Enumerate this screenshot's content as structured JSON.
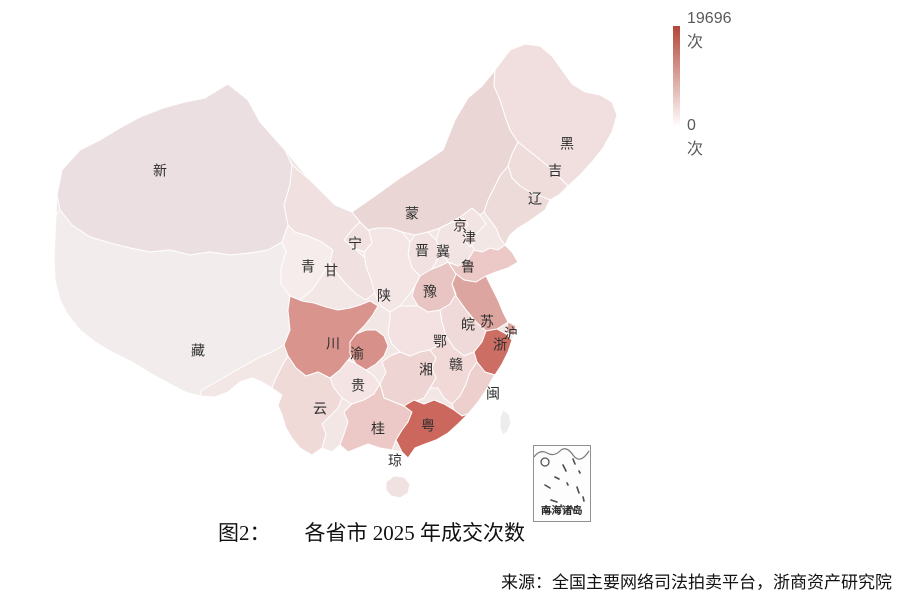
{
  "page": {
    "background": "#ffffff"
  },
  "legend": {
    "max_label": "19696次",
    "min_label": "0次",
    "top_color": "#b34638",
    "bottom_color": "#ffffff",
    "label_color": "#5a5a5a"
  },
  "caption": {
    "prefix": "图2：",
    "text": "各省市 2025 年成交次数"
  },
  "source": {
    "text": "来源：全国主要网络司法拍卖平台，浙商资产研究院"
  },
  "inset": {
    "label": "南海诸岛"
  },
  "map": {
    "base_color": "#f3e7e6",
    "border_color": "#ffffff",
    "taiwan_color": "#ededed"
  },
  "chart_data": {
    "type": "heatmap",
    "subtype": "china-province-choropleth",
    "title": "图2： 各省市 2025 年成交次数",
    "unit": "次",
    "value_range": [
      0,
      19696
    ],
    "legend_position": "top-right",
    "values_estimated_from_color": true,
    "provinces": [
      {
        "id": "xinjiang",
        "abbr": "新",
        "color": "#ebdfe1",
        "value_est": 2500
      },
      {
        "id": "xizang",
        "abbr": "藏",
        "color": "#f2edec",
        "value_est": 400
      },
      {
        "id": "qinghai",
        "abbr": "青",
        "color": "#f5eceb",
        "value_est": 600
      },
      {
        "id": "gansu",
        "abbr": "甘",
        "color": "#f0e0df",
        "value_est": 1500
      },
      {
        "id": "neimenggu",
        "abbr": "蒙",
        "color": "#ead6d5",
        "value_est": 3000
      },
      {
        "id": "heilongjiang",
        "abbr": "黑",
        "color": "#f0dfde",
        "value_est": 2000
      },
      {
        "id": "jilin",
        "abbr": "吉",
        "color": "#efdddc",
        "value_est": 2200
      },
      {
        "id": "liaoning",
        "abbr": "辽",
        "color": "#eddbda",
        "value_est": 2500
      },
      {
        "id": "hebei",
        "abbr": "冀",
        "color": "#f2e4e3",
        "value_est": 1800
      },
      {
        "id": "shanxi",
        "abbr": "晋",
        "color": "#f1e2e1",
        "value_est": 1900
      },
      {
        "id": "shaanxi",
        "abbr": "陕",
        "color": "#f3e6e5",
        "value_est": 1700
      },
      {
        "id": "ningxia",
        "abbr": "宁",
        "color": "#f1e2e1",
        "value_est": 1400
      },
      {
        "id": "beijing",
        "abbr": "京",
        "color": "#f0dcdb",
        "value_est": 2300
      },
      {
        "id": "tianjin",
        "abbr": "津",
        "color": "#eedad9",
        "value_est": 2400
      },
      {
        "id": "shandong",
        "abbr": "鲁",
        "color": "#ecc9c7",
        "value_est": 5200
      },
      {
        "id": "henan",
        "abbr": "豫",
        "color": "#e8c5c3",
        "value_est": 5000
      },
      {
        "id": "hubei",
        "abbr": "鄂",
        "color": "#f3e2e1",
        "value_est": 2600
      },
      {
        "id": "jiangsu",
        "abbr": "苏",
        "color": "#dda59f",
        "value_est": 8500
      },
      {
        "id": "anhui",
        "abbr": "皖",
        "color": "#f0dad9",
        "value_est": 3200
      },
      {
        "id": "shanghai",
        "abbr": "沪",
        "color": "#dca49e",
        "value_est": 8600
      },
      {
        "id": "sichuan",
        "abbr": "川",
        "color": "#d9948d",
        "value_est": 12000
      },
      {
        "id": "chongqing",
        "abbr": "渝",
        "color": "#d8918a",
        "value_est": 12500
      },
      {
        "id": "guizhou",
        "abbr": "贵",
        "color": "#f4e5e4",
        "value_est": 1600
      },
      {
        "id": "yunnan",
        "abbr": "云",
        "color": "#efdad8",
        "value_est": 3400
      },
      {
        "id": "hunan",
        "abbr": "湘",
        "color": "#eed4d2",
        "value_est": 4200
      },
      {
        "id": "jiangxi",
        "abbr": "赣",
        "color": "#f0d9d7",
        "value_est": 3600
      },
      {
        "id": "zhejiang",
        "abbr": "浙",
        "color": "#cd6e64",
        "value_est": 18500
      },
      {
        "id": "fujian",
        "abbr": "闽",
        "color": "#edd0cd",
        "value_est": 4600
      },
      {
        "id": "guangxi",
        "abbr": "桂",
        "color": "#ecc9c6",
        "value_est": 5300
      },
      {
        "id": "guangdong",
        "abbr": "粤",
        "color": "#cc675d",
        "value_est": 19696
      },
      {
        "id": "hainan",
        "abbr": "琼",
        "color": "#f0e2e1",
        "value_est": 3000
      },
      {
        "id": "taiwan",
        "abbr": "",
        "color": "#ededed",
        "value_est": null
      }
    ]
  }
}
